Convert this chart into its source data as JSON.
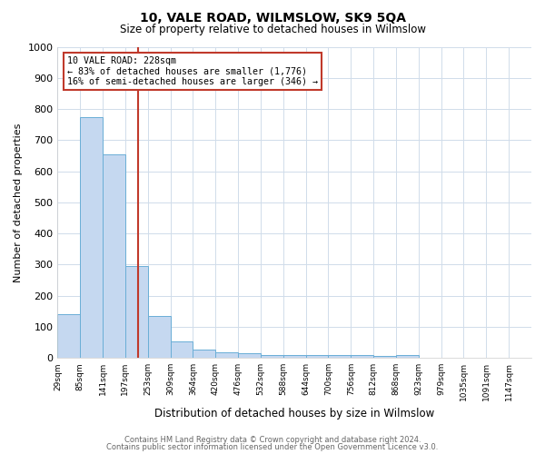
{
  "title": "10, VALE ROAD, WILMSLOW, SK9 5QA",
  "subtitle": "Size of property relative to detached houses in Wilmslow",
  "xlabel": "Distribution of detached houses by size in Wilmslow",
  "ylabel": "Number of detached properties",
  "footnote1": "Contains HM Land Registry data © Crown copyright and database right 2024.",
  "footnote2": "Contains public sector information licensed under the Open Government Licence v3.0.",
  "bin_labels": [
    "29sqm",
    "85sqm",
    "141sqm",
    "197sqm",
    "253sqm",
    "309sqm",
    "364sqm",
    "420sqm",
    "476sqm",
    "532sqm",
    "588sqm",
    "644sqm",
    "700sqm",
    "756sqm",
    "812sqm",
    "868sqm",
    "923sqm",
    "979sqm",
    "1035sqm",
    "1091sqm",
    "1147sqm"
  ],
  "values": [
    140,
    775,
    655,
    295,
    135,
    53,
    28,
    18,
    15,
    8,
    8,
    10,
    8,
    8,
    7,
    10,
    0,
    0,
    0,
    0,
    0
  ],
  "bar_color": "#c5d8f0",
  "bar_edge_color": "#6aaed6",
  "ylim": [
    0,
    1000
  ],
  "yticks": [
    0,
    100,
    200,
    300,
    400,
    500,
    600,
    700,
    800,
    900,
    1000
  ],
  "property_size_idx": 3.57,
  "property_line_color": "#c0392b",
  "annotation_line1": "10 VALE ROAD: 228sqm",
  "annotation_line2": "← 83% of detached houses are smaller (1,776)",
  "annotation_line3": "16% of semi-detached houses are larger (346) →",
  "annotation_box_color": "#ffffff",
  "annotation_box_edge": "#c0392b",
  "n_bins": 21,
  "grid_color": "#d0dcea",
  "title_fontsize": 10,
  "subtitle_fontsize": 8.5,
  "footnote_fontsize": 6.0,
  "ylabel_fontsize": 8,
  "xlabel_fontsize": 8.5
}
